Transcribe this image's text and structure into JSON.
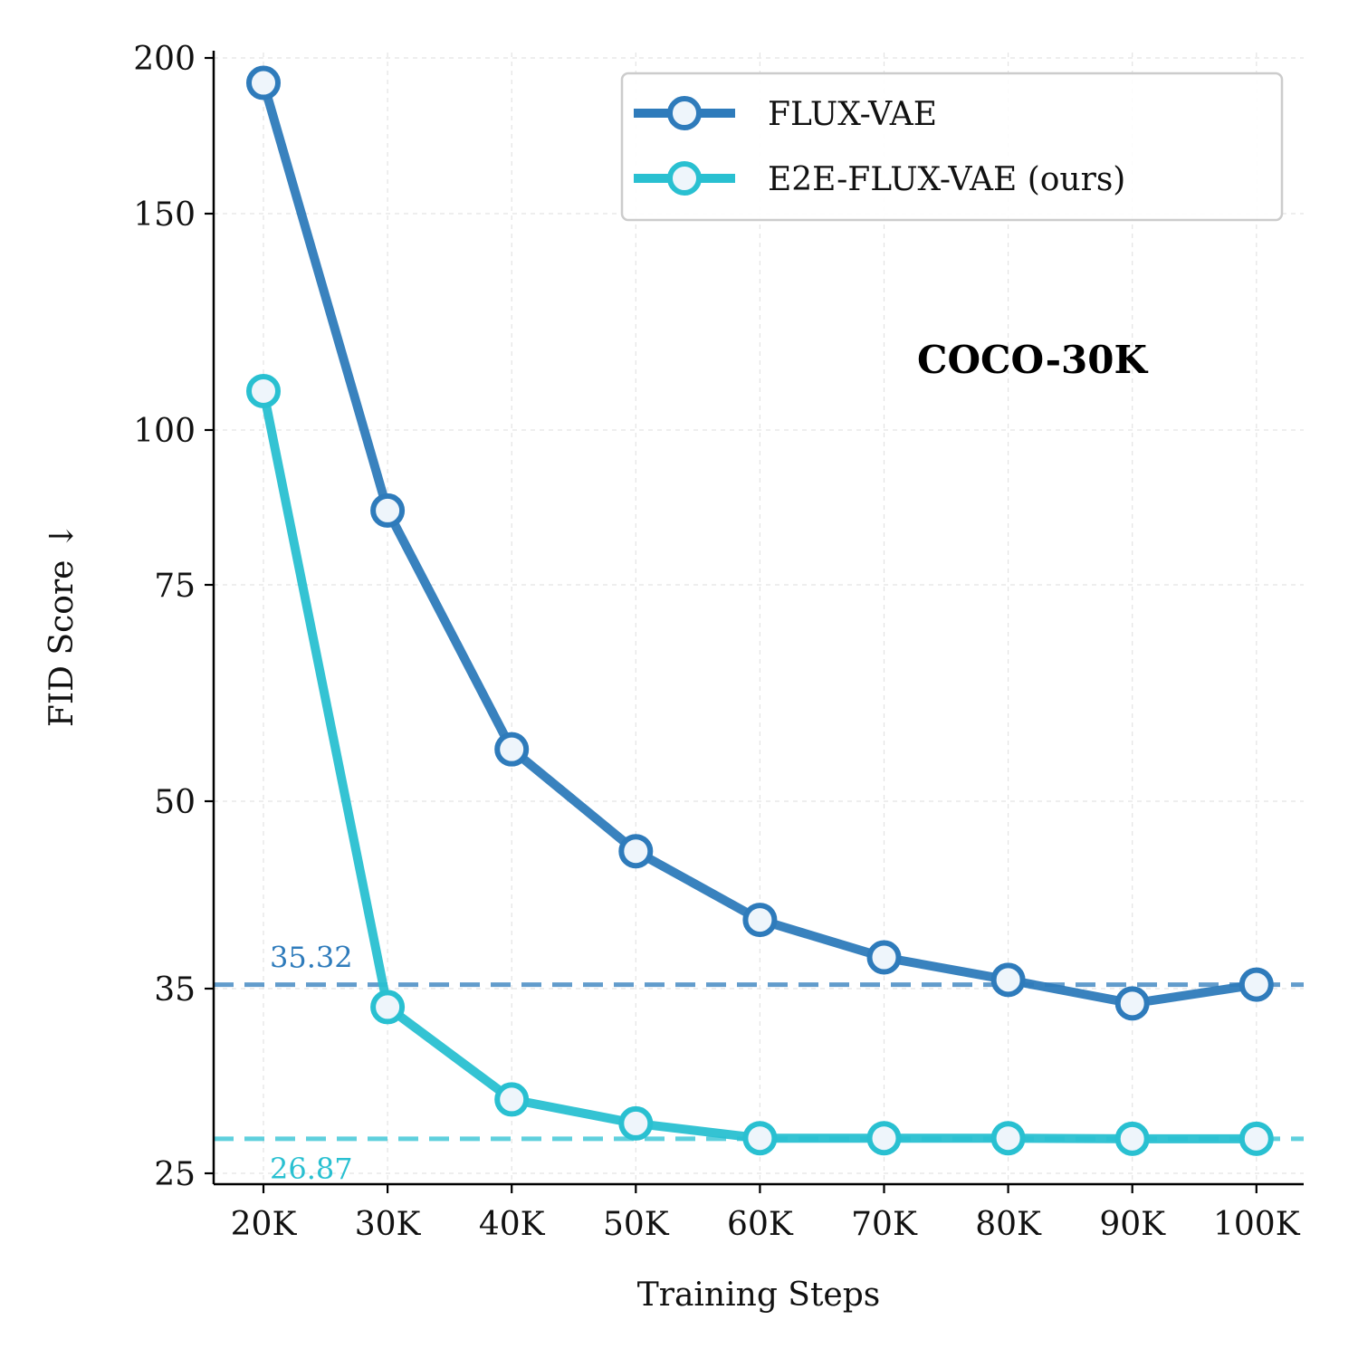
{
  "chart_data": {
    "type": "line",
    "title": "",
    "annotation": "COCO-30K",
    "xlabel": "Training Steps",
    "ylabel": "FID Score ↓",
    "x_ticks": [
      "20K",
      "30K",
      "40K",
      "50K",
      "60K",
      "70K",
      "80K",
      "90K",
      "100K"
    ],
    "y_ticks": [
      25,
      35,
      50,
      75,
      100,
      150,
      200
    ],
    "y_scale": "non-linear (piecewise, ticks at 25, 35, 50, 75, 100, 150, 200)",
    "ylim": [
      23,
      201
    ],
    "grid": true,
    "legend_position": "top-right",
    "series": [
      {
        "name": "FLUX-VAE",
        "color": "#2e7bbb",
        "values": [
          192,
          87,
          56,
          46,
          40.5,
          37.5,
          35.7,
          34.2,
          35.32
        ]
      },
      {
        "name": "E2E-FLUX-VAE (ours)",
        "color": "#29c0d1",
        "values": [
          109,
          34,
          29,
          27.7,
          26.9,
          26.9,
          26.9,
          26.87,
          26.87
        ]
      }
    ],
    "reference_lines": [
      {
        "label": "35.32",
        "value": 35.32,
        "color": "#2e7bbb"
      },
      {
        "label": "26.87",
        "value": 26.87,
        "color": "#29c0d1"
      }
    ]
  }
}
